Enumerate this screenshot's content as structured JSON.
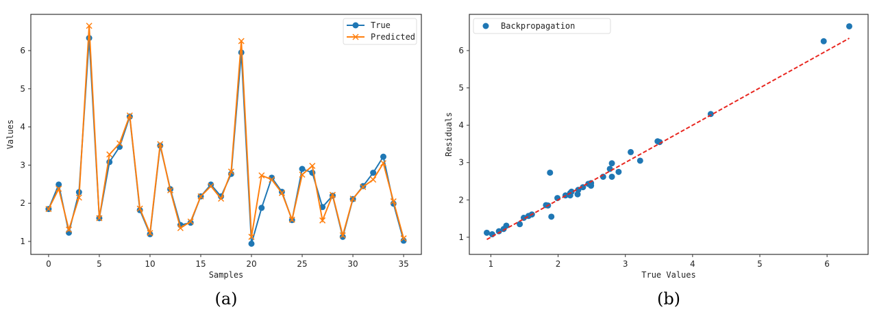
{
  "chart_data": [
    {
      "type": "line",
      "caption": "(a)",
      "xlabel": "Samples",
      "ylabel": "Values",
      "xlim": [
        -1.75,
        36.75
      ],
      "ylim": [
        0.66,
        6.95
      ],
      "xticks": [
        0,
        5,
        10,
        15,
        20,
        25,
        30,
        35
      ],
      "yticks": [
        1,
        2,
        3,
        4,
        5,
        6
      ],
      "grid": false,
      "legend": "top-right",
      "x": [
        0,
        1,
        2,
        3,
        4,
        5,
        6,
        7,
        8,
        9,
        10,
        11,
        12,
        13,
        14,
        15,
        16,
        17,
        18,
        19,
        20,
        21,
        22,
        23,
        24,
        25,
        26,
        27,
        28,
        29,
        30,
        31,
        32,
        33,
        34,
        35
      ],
      "series": [
        {
          "name": "True",
          "marker": "circle",
          "color": "#1f77b4",
          "values": [
            1.85,
            2.49,
            1.23,
            2.29,
            6.33,
            1.61,
            3.08,
            3.48,
            4.27,
            1.82,
            1.19,
            3.51,
            2.37,
            1.43,
            1.49,
            2.18,
            2.49,
            2.18,
            2.77,
            5.95,
            0.94,
            1.88,
            2.67,
            2.3,
            1.56,
            2.9,
            2.8,
            1.9,
            2.2,
            1.12,
            2.11,
            2.45,
            2.8,
            3.22,
            1.99,
            1.02
          ]
        },
        {
          "name": "Predicted",
          "marker": "x",
          "color": "#ff7f0e",
          "values": [
            1.85,
            2.38,
            1.31,
            2.15,
            6.65,
            1.61,
            3.28,
            3.57,
            4.3,
            1.86,
            1.22,
            3.55,
            2.34,
            1.35,
            1.52,
            2.18,
            2.45,
            2.12,
            2.83,
            6.25,
            1.12,
            2.73,
            2.62,
            2.27,
            1.57,
            2.75,
            2.98,
            1.55,
            2.22,
            1.16,
            2.12,
            2.43,
            2.62,
            3.05,
            2.05,
            1.08
          ]
        }
      ]
    },
    {
      "type": "scatter",
      "caption": "(b)",
      "xlabel": "True Values",
      "ylabel": "Residuals",
      "xlim": [
        0.68,
        6.61
      ],
      "ylim": [
        0.54,
        6.97
      ],
      "xticks": [
        1,
        2,
        3,
        4,
        5,
        6
      ],
      "yticks": [
        1,
        2,
        3,
        4,
        5,
        6
      ],
      "grid": false,
      "legend": "top-left",
      "series": [
        {
          "name": "Backpropagation",
          "color": "#1f77b4",
          "x": [
            1.85,
            2.49,
            1.23,
            2.29,
            6.33,
            1.61,
            3.08,
            3.48,
            4.27,
            1.82,
            1.19,
            3.51,
            2.37,
            1.43,
            1.49,
            2.18,
            2.49,
            2.18,
            2.77,
            5.95,
            0.94,
            1.88,
            2.67,
            2.3,
            1.56,
            2.9,
            2.8,
            1.9,
            2.2,
            1.12,
            2.11,
            2.45,
            2.8,
            3.22,
            1.99,
            1.02
          ],
          "y": [
            1.85,
            2.38,
            1.31,
            2.15,
            6.65,
            1.61,
            3.28,
            3.57,
            4.3,
            1.86,
            1.22,
            3.55,
            2.34,
            1.35,
            1.52,
            2.18,
            2.45,
            2.12,
            2.83,
            6.25,
            1.12,
            2.73,
            2.62,
            2.27,
            1.57,
            2.75,
            2.98,
            1.55,
            2.22,
            1.16,
            2.12,
            2.43,
            2.62,
            3.05,
            2.05,
            1.08
          ]
        }
      ],
      "reference_line": {
        "style": "dashed",
        "color": "#e8261f",
        "x": [
          0.94,
          6.33
        ],
        "y": [
          0.94,
          6.33
        ]
      }
    }
  ]
}
